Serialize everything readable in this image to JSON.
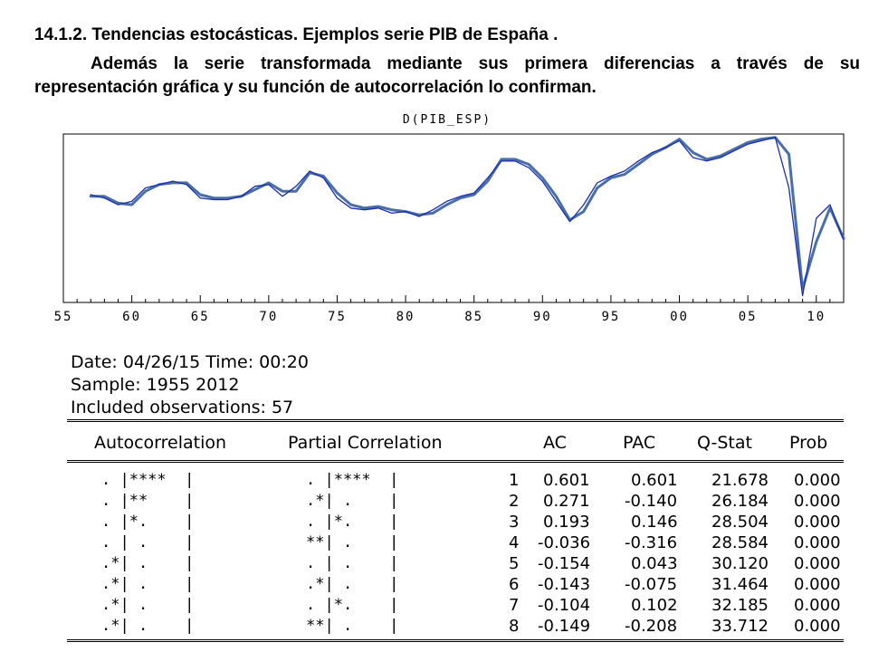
{
  "heading": "14.1.2. Tendencias estocásticas. Ejemplos serie PIB de España .",
  "paragraph": "Además la serie transformada mediante sus primera diferencias a través de su representación gráfica y su función de autocorrelación lo confirman.",
  "chart_data": {
    "type": "line",
    "title": "D(PIB_ESP)",
    "xlim": [
      1955,
      2012
    ],
    "ylim": [
      0,
      100
    ],
    "x_tick_labels": [
      "55",
      "60",
      "65",
      "70",
      "75",
      "80",
      "85",
      "90",
      "95",
      "00",
      "05",
      "10"
    ],
    "series": [
      {
        "color": "#1a2fb0",
        "x": [
          1957,
          1958,
          1959,
          1960,
          1961,
          1962,
          1963,
          1964,
          1965,
          1966,
          1967,
          1968,
          1969,
          1970,
          1971,
          1972,
          1973,
          1974,
          1975,
          1976,
          1977,
          1978,
          1979,
          1980,
          1981,
          1982,
          1983,
          1984,
          1985,
          1986,
          1987,
          1988,
          1989,
          1990,
          1991,
          1992,
          1993,
          1994,
          1995,
          1996,
          1997,
          1998,
          1999,
          2000,
          2001,
          2002,
          2003,
          2004,
          2005,
          2006,
          2007,
          2008,
          2009,
          2010,
          2011,
          2012
        ],
        "values": [
          64,
          62,
          58,
          60,
          68,
          70,
          72,
          70,
          62,
          61,
          61,
          63,
          69,
          70,
          63,
          69,
          78,
          74,
          62,
          56,
          55,
          56,
          53,
          54,
          51,
          55,
          60,
          63,
          65,
          74,
          84,
          84,
          80,
          72,
          60,
          48,
          58,
          71,
          75,
          78,
          84,
          89,
          92,
          96,
          86,
          84,
          86,
          90,
          94,
          96,
          98,
          68,
          4,
          50,
          58,
          37
        ]
      },
      {
        "color": "#4a6fa6",
        "x": [
          1957,
          1958,
          1959,
          1960,
          1961,
          1962,
          1963,
          1964,
          1965,
          1966,
          1967,
          1968,
          1969,
          1970,
          1971,
          1972,
          1973,
          1974,
          1975,
          1976,
          1977,
          1978,
          1979,
          1980,
          1981,
          1982,
          1983,
          1984,
          1985,
          1986,
          1987,
          1988,
          1989,
          1990,
          1991,
          1992,
          1993,
          1994,
          1995,
          1996,
          1997,
          1998,
          1999,
          2000,
          2001,
          2002,
          2003,
          2004,
          2005,
          2006,
          2007,
          2008,
          2009,
          2010,
          2011,
          2012
        ],
        "values": [
          63,
          63,
          59,
          58,
          66,
          70,
          71,
          71,
          64,
          62,
          62,
          63,
          67,
          71,
          66,
          66,
          77,
          75,
          65,
          58,
          56,
          57,
          55,
          54,
          52,
          53,
          58,
          62,
          64,
          72,
          85,
          85,
          82,
          74,
          63,
          49,
          54,
          68,
          74,
          76,
          82,
          88,
          92,
          97,
          89,
          85,
          87,
          91,
          95,
          97,
          98,
          88,
          8,
          36,
          56,
          38
        ]
      }
    ]
  },
  "correlogram": {
    "date_line": "Date: 04/26/15   Time: 00:20",
    "sample_line": "Sample: 1955 2012",
    "observations_line": "Included observations: 57",
    "headers": {
      "autocorrelation": "Autocorrelation",
      "partial": "Partial Correlation",
      "ac": "AC",
      "pac": "PAC",
      "qstat": "Q-Stat",
      "prob": "Prob"
    },
    "rows": [
      {
        "ac_bar": ". |****  |",
        "pac_bar": ". |****  |",
        "lag": "1",
        "ac": "0.601",
        "pac": "0.601",
        "qstat": "21.678",
        "prob": "0.000"
      },
      {
        "ac_bar": ". |**    |",
        "pac_bar": ".*| .    |",
        "lag": "2",
        "ac": "0.271",
        "pac": "-0.140",
        "qstat": "26.184",
        "prob": "0.000"
      },
      {
        "ac_bar": ". |*.    |",
        "pac_bar": ". |*.    |",
        "lag": "3",
        "ac": "0.193",
        "pac": "0.146",
        "qstat": "28.504",
        "prob": "0.000"
      },
      {
        "ac_bar": ". | .    |",
        "pac_bar": "**| .    |",
        "lag": "4",
        "ac": "-0.036",
        "pac": "-0.316",
        "qstat": "28.584",
        "prob": "0.000"
      },
      {
        "ac_bar": ".*| .    |",
        "pac_bar": ". | .    |",
        "lag": "5",
        "ac": "-0.154",
        "pac": "0.043",
        "qstat": "30.120",
        "prob": "0.000"
      },
      {
        "ac_bar": ".*| .    |",
        "pac_bar": ".*| .    |",
        "lag": "6",
        "ac": "-0.143",
        "pac": "-0.075",
        "qstat": "31.464",
        "prob": "0.000"
      },
      {
        "ac_bar": ".*| .    |",
        "pac_bar": ". |*.    |",
        "lag": "7",
        "ac": "-0.104",
        "pac": "0.102",
        "qstat": "32.185",
        "prob": "0.000"
      },
      {
        "ac_bar": ".*| .    |",
        "pac_bar": "**| .    |",
        "lag": "8",
        "ac": "-0.149",
        "pac": "-0.208",
        "qstat": "33.712",
        "prob": "0.000"
      }
    ]
  }
}
